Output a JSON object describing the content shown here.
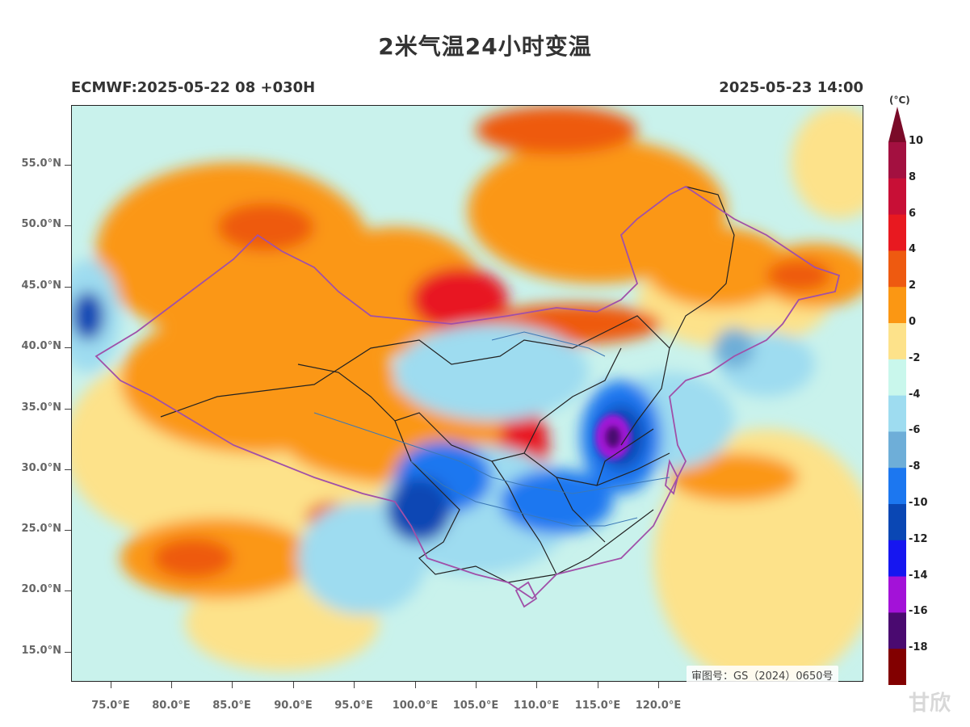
{
  "title": "2米气温24小时变温",
  "subtitle_left": "ECMWF:2025-05-22 08 +030H",
  "subtitle_right": "2025-05-23 14:00",
  "watermark": "审图号：GS（2024）0650号",
  "brand": "甘欣",
  "colorbar": {
    "unit": "(°C)",
    "labels": [
      "10",
      "8",
      "6",
      "4",
      "2",
      "0",
      "-2",
      "-4",
      "-6",
      "-8",
      "-10",
      "-12",
      "-14",
      "-16",
      "-18"
    ],
    "colors_top_to_bottom": [
      "#a31040",
      "#c80f36",
      "#e81920",
      "#ee5a10",
      "#fb9713",
      "#fde28a",
      "#c9f7ec",
      "#9edcf0",
      "#6eaed8",
      "#1c77f0",
      "#0a47b4",
      "#1616f0",
      "#a312d8",
      "#4a0a70",
      "#820000"
    ],
    "cap_top": "#7a0a28",
    "cap_bottom": "#4a0000"
  },
  "axes": {
    "lat_labels": [
      "55.0°N",
      "50.0°N",
      "45.0°N",
      "40.0°N",
      "35.0°N",
      "30.0°N",
      "25.0°N",
      "20.0°N",
      "15.0°N"
    ],
    "lon_labels": [
      "75.0°E",
      "80.0°E",
      "85.0°E",
      "90.0°E",
      "95.0°E",
      "100.0°E",
      "105.0°E",
      "110.0°E",
      "115.0°E",
      "120.0°E"
    ]
  }
}
